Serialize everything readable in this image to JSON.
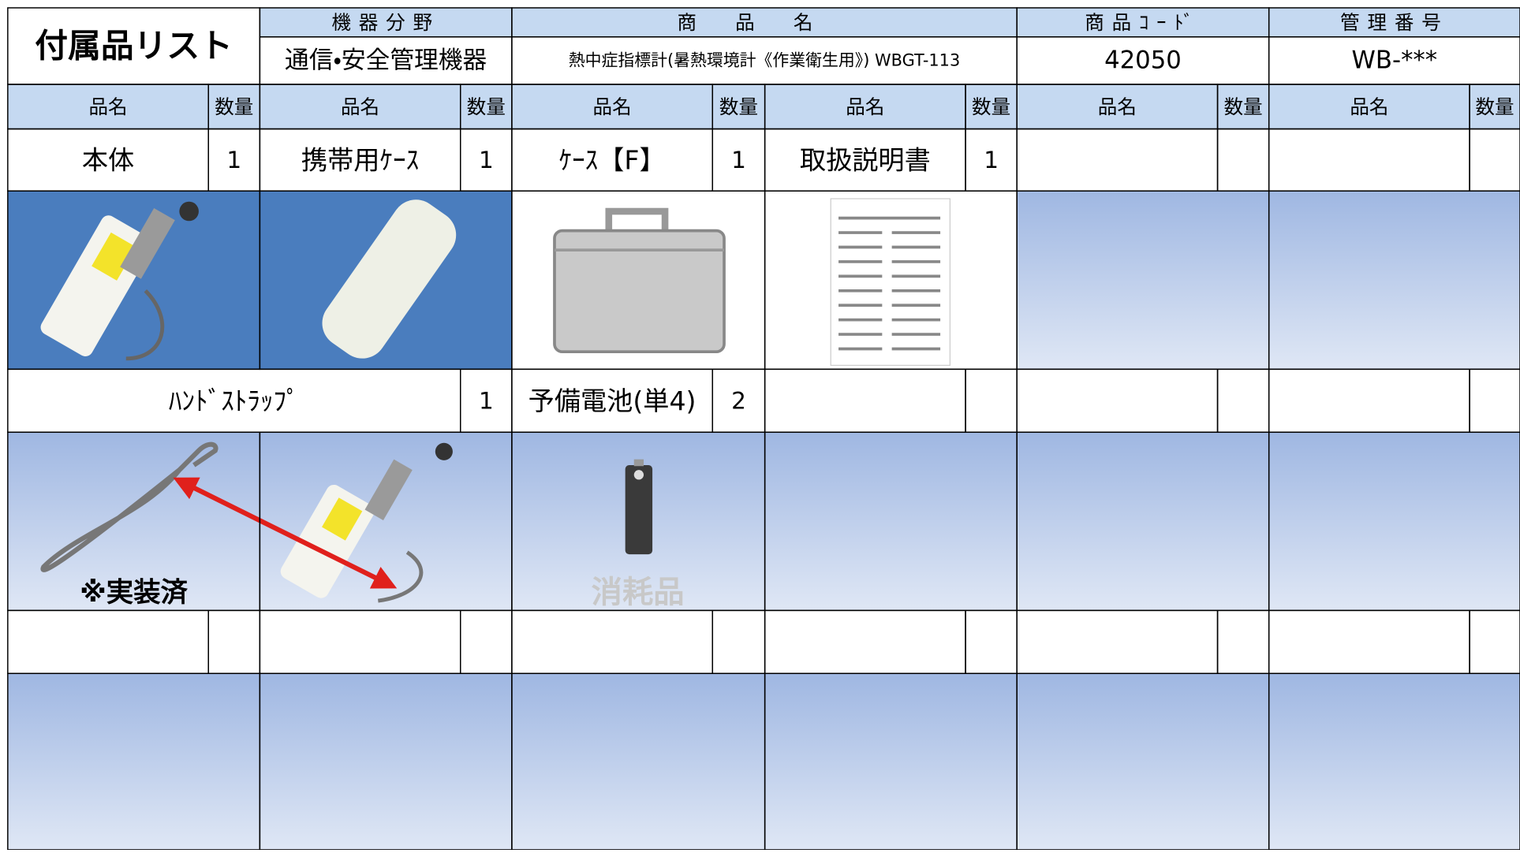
{
  "header": {
    "title": "付属品リスト",
    "columns": [
      {
        "label": "機器分野",
        "value": "通信・安全管理機器"
      },
      {
        "label": "商品名",
        "value": "熱中症指標計(暑熱環境計《作業衛生用》) WBGT-113"
      },
      {
        "label": "商品ｺｰﾄﾞ",
        "value": "42050"
      },
      {
        "label": "管理番号",
        "value": "WB-***"
      }
    ]
  },
  "table": {
    "column_headers": [
      [
        "品名",
        "数量"
      ],
      [
        "品名",
        "数量"
      ],
      [
        "品名",
        "数量"
      ],
      [
        "品名",
        "数量"
      ],
      [
        "品名",
        "数量"
      ],
      [
        "品名",
        "数量"
      ]
    ],
    "rows": [
      [
        {
          "name": "本体",
          "qty": 1
        },
        {
          "name": "携帯用ｹｰｽ",
          "qty": 1
        },
        {
          "name": "ｹｰｽ【F】",
          "qty": 1
        },
        {
          "name": "取扱説明書",
          "qty": 1
        }
      ],
      [
        {
          "name": "ﾊﾝﾄﾞｽﾄﾗｯﾌﾟ",
          "qty": 1
        },
        {
          "name": "予備電池(単4)",
          "qty": 2
        }
      ]
    ],
    "notes": [
      "※実装済",
      "消耗品"
    ]
  }
}
